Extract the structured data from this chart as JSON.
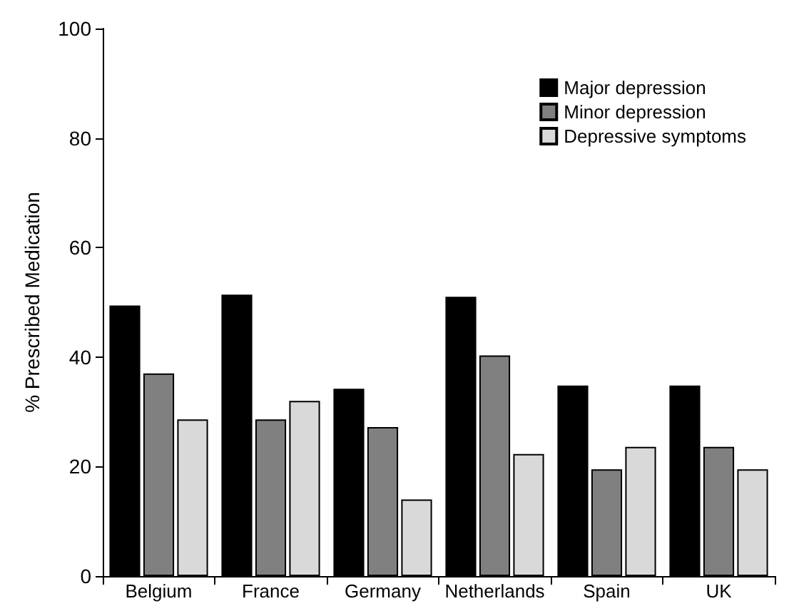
{
  "chart_data": {
    "type": "bar",
    "ylabel": "% Prescribed Medication",
    "categories": [
      "Belgium",
      "France",
      "Germany",
      "Netherlands",
      "Spain",
      "UK"
    ],
    "series": [
      {
        "name": "Major depression",
        "color": "#000000",
        "values": [
          49.4,
          51.4,
          34.2,
          51,
          34.8,
          34.8
        ]
      },
      {
        "name": "Minor depression",
        "color": "#808080",
        "values": [
          37,
          28.6,
          27.2,
          40.3,
          19.5,
          23.6
        ]
      },
      {
        "name": "Depressive symptoms",
        "color": "#d9d9d9",
        "values": [
          28.6,
          32,
          14,
          22.3,
          23.6,
          19.5
        ]
      }
    ],
    "ylim": [
      0,
      100
    ],
    "yticks": [
      0,
      20,
      40,
      60,
      80,
      100
    ],
    "grid": false,
    "legend": "top right"
  }
}
